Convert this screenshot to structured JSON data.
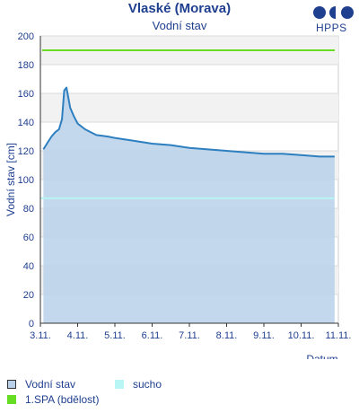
{
  "header": {
    "title": "Vlaské (Morava)",
    "subtitle": "Vodní stav",
    "logo_text": "HPPS"
  },
  "legend": {
    "water_level": "Vodní stav",
    "dry": "sucho",
    "spa1": "1.SPA (bdělost)"
  },
  "colors": {
    "series_line": "#2d7fc0",
    "series_fill": "#b9d1ea",
    "spa1": "#66dd22",
    "dry": "#b8f5f5",
    "band": "#f2f2f2",
    "text": "#1f3f8f"
  },
  "chart_data": {
    "type": "area",
    "title": "Vlaské (Morava)",
    "subtitle": "Vodní stav",
    "xlabel": "Datum",
    "ylabel": "Vodní stav [cm]",
    "ylim": [
      0,
      200
    ],
    "yticks": [
      0,
      20,
      40,
      60,
      80,
      100,
      120,
      140,
      160,
      180,
      200
    ],
    "xlim": [
      3.0,
      11.0
    ],
    "xticks": [
      3,
      4,
      5,
      6,
      7,
      8,
      9,
      10,
      11
    ],
    "xtick_labels": [
      "3.11.",
      "4.11.",
      "5.11.",
      "6.11.",
      "7.11.",
      "8.11.",
      "9.11.",
      "10.11.",
      "11.11."
    ],
    "grid": "alternating horizontal bands",
    "legend_position": "bottom",
    "series": [
      {
        "name": "Vodní stav",
        "x": [
          3.08,
          3.2,
          3.3,
          3.4,
          3.5,
          3.58,
          3.64,
          3.7,
          3.75,
          3.8,
          3.9,
          4.0,
          4.2,
          4.5,
          4.8,
          5.0,
          5.5,
          6.0,
          6.5,
          7.0,
          7.5,
          8.0,
          8.5,
          9.0,
          9.5,
          10.0,
          10.5,
          10.9
        ],
        "y": [
          121,
          126,
          130,
          133,
          135,
          142,
          162,
          164,
          157,
          150,
          144,
          139,
          135,
          131,
          130,
          129,
          127,
          125,
          124,
          122,
          121,
          120,
          119,
          118,
          118,
          117,
          116,
          116
        ]
      },
      {
        "name": "1.SPA (bdělost)",
        "constant": 190
      },
      {
        "name": "sucho",
        "constant": 87
      }
    ]
  }
}
